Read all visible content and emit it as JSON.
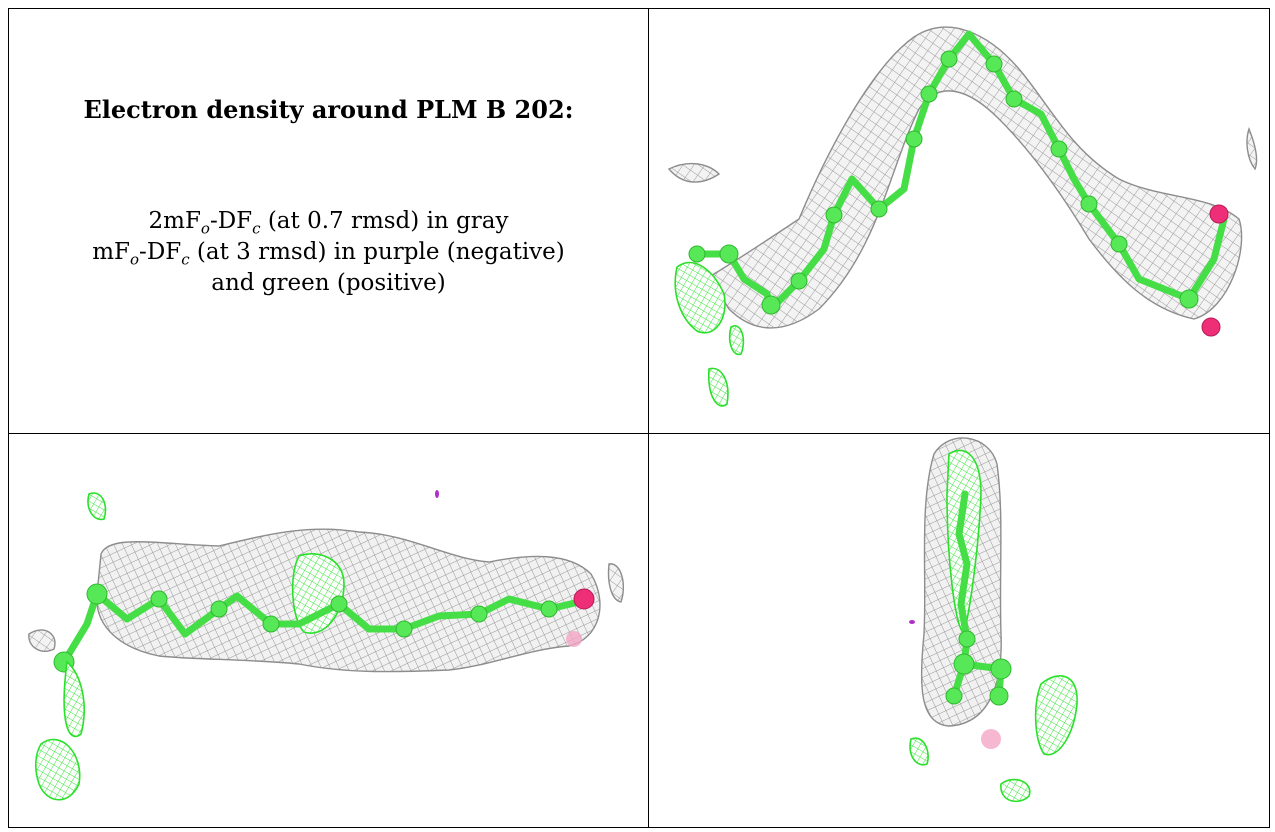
{
  "panel_title": "Electron density around PLM B 202:",
  "legend": {
    "line1_pre": "2mF",
    "line1_sub1": "o",
    "line1_mid": "-DF",
    "line1_sub2": "c",
    "line1_post": " (at 0.7 rmsd) in gray",
    "line2_pre": "mF",
    "line2_sub1": "o",
    "line2_mid": "-DF",
    "line2_sub2": "c",
    "line2_post": " (at 3 rmsd) in purple (negative)",
    "line3": "and green (positive)"
  },
  "colors": {
    "gray_mesh": "#8d8d8d",
    "carbon_green": "#46de46",
    "oxygen_pink": "#ee2f78",
    "positive_green": "#2ae02a",
    "negative_purple": "#b030c8"
  },
  "views": [
    "view-top-right",
    "view-bottom-left",
    "view-bottom-right"
  ]
}
